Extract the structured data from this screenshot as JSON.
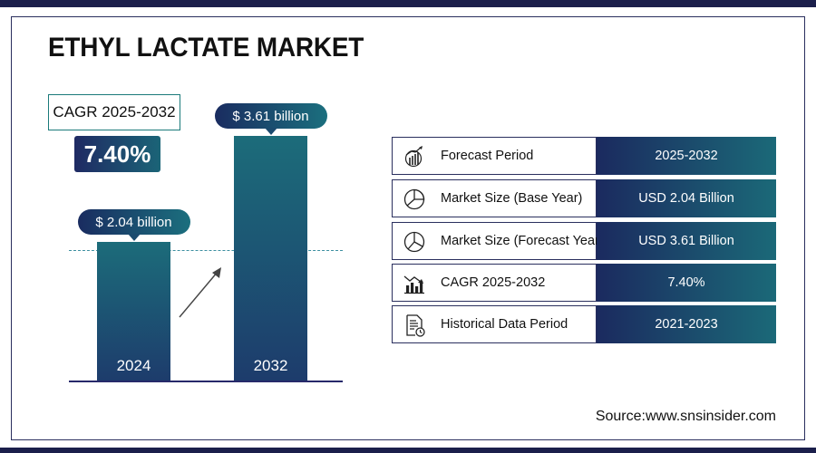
{
  "title": "ETHYL LACTATE MARKET",
  "cagr": {
    "label": "CAGR 2025-2032",
    "value": "7.40%"
  },
  "chart_data": {
    "type": "bar",
    "title": "ETHYL LACTATE MARKET",
    "categories": [
      "2024",
      "2032"
    ],
    "values": [
      2.04,
      3.61
    ],
    "unit": "USD billion",
    "data_labels": [
      "$ 2.04 billion",
      "$ 3.61 billion"
    ],
    "colors": {
      "bar_top": "#1c6c7a",
      "bar_bottom": "#1d3c6c"
    }
  },
  "table": {
    "rows": [
      {
        "icon": "growth-chart-icon",
        "label": "Forecast Period",
        "value": "2025-2032"
      },
      {
        "icon": "pie-chart-icon",
        "label": "Market Size (Base Year)",
        "value": "USD 2.04 Billion"
      },
      {
        "icon": "pie-chart-segments-icon",
        "label": "Market Size (Forecast Year)",
        "value": "USD 3.61 Billion"
      },
      {
        "icon": "bar-chart-trend-icon",
        "label": "CAGR 2025-2032",
        "value": "7.40%"
      },
      {
        "icon": "document-clock-icon",
        "label": "Historical Data Period",
        "value": "2021-2023"
      }
    ]
  },
  "source": "Source:www.snsinsider.com",
  "colors": {
    "navy": "#1b2a5f",
    "teal": "#1b6978",
    "frame": "#2a2f5e"
  }
}
